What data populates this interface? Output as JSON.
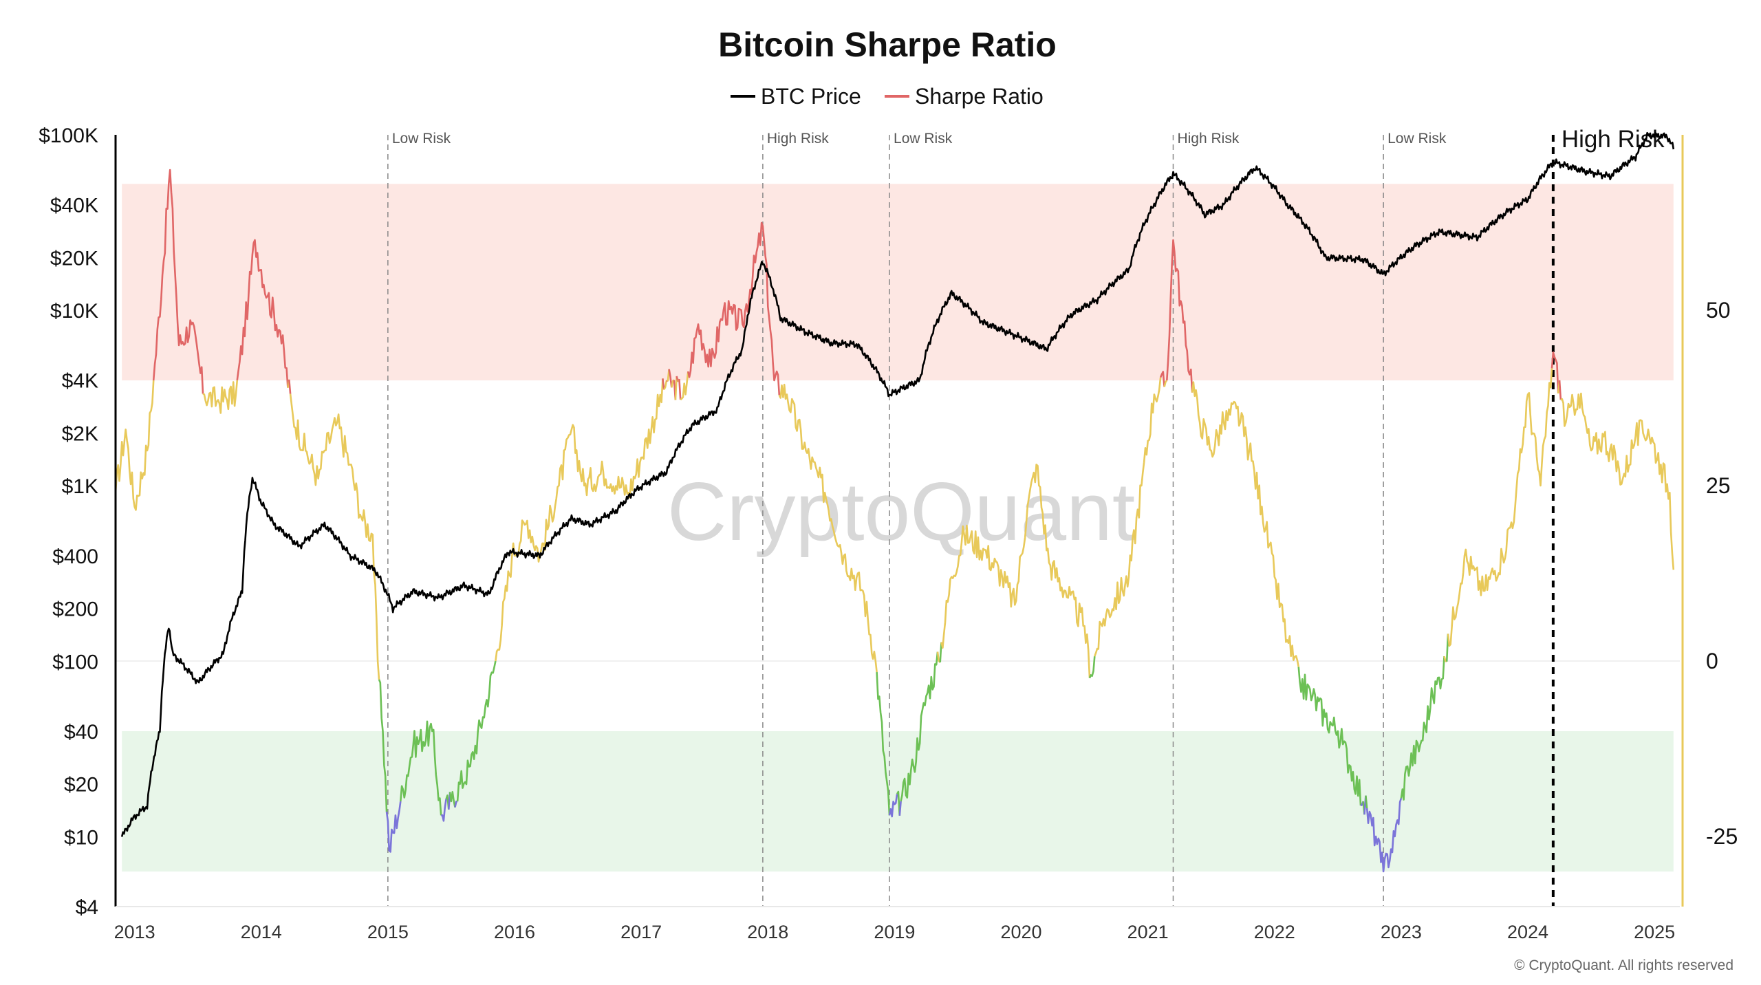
{
  "chart_data": {
    "type": "line",
    "title": "Bitcoin Sharpe Ratio",
    "watermark": "CryptoQuant",
    "copyright": "© CryptoQuant. All rights reserved",
    "legend": [
      {
        "name": "BTC Price",
        "color": "#000000"
      },
      {
        "name": "Sharpe Ratio",
        "color": "#e06666"
      }
    ],
    "x_axis": {
      "range": [
        2012.85,
        2025.2
      ],
      "ticks": [
        "2013",
        "2014",
        "2015",
        "2016",
        "2017",
        "2018",
        "2019",
        "2020",
        "2021",
        "2022",
        "2023",
        "2024",
        "2025"
      ]
    },
    "y_left": {
      "scale": "log",
      "range": [
        4,
        100000
      ],
      "ticks": [
        "$100K",
        "$40K",
        "$20K",
        "$10K",
        "$4K",
        "$2K",
        "$1K",
        "$400",
        "$200",
        "$100",
        "$40",
        "$20",
        "$10",
        "$4"
      ]
    },
    "y_right": {
      "scale": "linear",
      "range": [
        -35,
        75
      ],
      "ticks": [
        "50",
        "25",
        "0",
        "-25"
      ]
    },
    "zones": [
      {
        "name": "High Risk zone",
        "from": 40,
        "to": 68,
        "color": "#fde7e3"
      },
      {
        "name": "Low Risk zone",
        "from": -30,
        "to": -10,
        "color": "#e8f6e9"
      }
    ],
    "sharpe_colors": {
      "high": "#e06666",
      "mid": "#e8c95a",
      "low": "#6cc055",
      "extreme_low": "#7b74d9"
    },
    "markers": [
      {
        "x": 2015.0,
        "label": "Low Risk"
      },
      {
        "x": 2017.96,
        "label": "High Risk"
      },
      {
        "x": 2018.96,
        "label": "Low Risk"
      },
      {
        "x": 2021.2,
        "label": "High Risk"
      },
      {
        "x": 2022.86,
        "label": "Low Risk"
      },
      {
        "x": 2024.2,
        "label": "High Risk",
        "current": true
      }
    ],
    "series": [
      {
        "name": "BTC Price",
        "points": [
          [
            2012.9,
            10
          ],
          [
            2013.0,
            13
          ],
          [
            2013.1,
            15
          ],
          [
            2013.2,
            40
          ],
          [
            2013.27,
            160
          ],
          [
            2013.3,
            110
          ],
          [
            2013.5,
            75
          ],
          [
            2013.7,
            110
          ],
          [
            2013.85,
            250
          ],
          [
            2013.93,
            1100
          ],
          [
            2014.0,
            800
          ],
          [
            2014.1,
            600
          ],
          [
            2014.3,
            450
          ],
          [
            2014.5,
            600
          ],
          [
            2014.7,
            400
          ],
          [
            2014.9,
            330
          ],
          [
            2015.04,
            200
          ],
          [
            2015.2,
            250
          ],
          [
            2015.4,
            230
          ],
          [
            2015.6,
            270
          ],
          [
            2015.8,
            240
          ],
          [
            2015.95,
            420
          ],
          [
            2016.2,
            400
          ],
          [
            2016.45,
            650
          ],
          [
            2016.6,
            600
          ],
          [
            2016.8,
            720
          ],
          [
            2016.98,
            970
          ],
          [
            2017.2,
            1200
          ],
          [
            2017.4,
            2200
          ],
          [
            2017.6,
            2700
          ],
          [
            2017.8,
            6000
          ],
          [
            2017.96,
            19000
          ],
          [
            2018.1,
            9000
          ],
          [
            2018.3,
            7500
          ],
          [
            2018.5,
            6500
          ],
          [
            2018.7,
            6400
          ],
          [
            2018.96,
            3300
          ],
          [
            2019.2,
            4000
          ],
          [
            2019.45,
            12500
          ],
          [
            2019.7,
            8500
          ],
          [
            2019.95,
            7200
          ],
          [
            2020.2,
            6000
          ],
          [
            2020.4,
            9500
          ],
          [
            2020.6,
            11500
          ],
          [
            2020.85,
            17000
          ],
          [
            2021.05,
            40000
          ],
          [
            2021.2,
            60000
          ],
          [
            2021.45,
            35000
          ],
          [
            2021.6,
            40000
          ],
          [
            2021.85,
            65000
          ],
          [
            2022.1,
            40000
          ],
          [
            2022.4,
            20000
          ],
          [
            2022.7,
            19500
          ],
          [
            2022.86,
            16000
          ],
          [
            2023.1,
            23000
          ],
          [
            2023.3,
            28000
          ],
          [
            2023.6,
            26000
          ],
          [
            2023.85,
            37000
          ],
          [
            2024.0,
            43000
          ],
          [
            2024.2,
            70000
          ],
          [
            2024.45,
            62000
          ],
          [
            2024.65,
            58000
          ],
          [
            2024.85,
            75000
          ],
          [
            2024.95,
            100000
          ],
          [
            2025.1,
            98000
          ],
          [
            2025.15,
            84000
          ]
        ]
      },
      {
        "name": "Sharpe Ratio",
        "points": [
          [
            2012.85,
            24
          ],
          [
            2012.93,
            33
          ],
          [
            2013.0,
            22
          ],
          [
            2013.1,
            30
          ],
          [
            2013.15,
            40
          ],
          [
            2013.22,
            55
          ],
          [
            2013.28,
            70
          ],
          [
            2013.35,
            45
          ],
          [
            2013.45,
            48
          ],
          [
            2013.55,
            38
          ],
          [
            2013.65,
            37
          ],
          [
            2013.8,
            38
          ],
          [
            2013.9,
            52
          ],
          [
            2013.95,
            60
          ],
          [
            2014.05,
            52
          ],
          [
            2014.15,
            47
          ],
          [
            2014.25,
            35
          ],
          [
            2014.35,
            30
          ],
          [
            2014.45,
            26
          ],
          [
            2014.5,
            30
          ],
          [
            2014.6,
            34
          ],
          [
            2014.7,
            28
          ],
          [
            2014.8,
            20
          ],
          [
            2014.88,
            18
          ],
          [
            2014.92,
            0
          ],
          [
            2014.96,
            -10
          ],
          [
            2015.01,
            -27
          ],
          [
            2015.1,
            -20
          ],
          [
            2015.2,
            -12
          ],
          [
            2015.35,
            -10
          ],
          [
            2015.42,
            -22
          ],
          [
            2015.5,
            -20
          ],
          [
            2015.65,
            -15
          ],
          [
            2015.75,
            -8
          ],
          [
            2015.85,
            0
          ],
          [
            2015.98,
            15
          ],
          [
            2016.1,
            20
          ],
          [
            2016.2,
            15
          ],
          [
            2016.35,
            25
          ],
          [
            2016.45,
            33
          ],
          [
            2016.55,
            25
          ],
          [
            2016.7,
            27
          ],
          [
            2016.9,
            24
          ],
          [
            2017.0,
            29
          ],
          [
            2017.2,
            40
          ],
          [
            2017.35,
            38
          ],
          [
            2017.45,
            48
          ],
          [
            2017.55,
            42
          ],
          [
            2017.65,
            50
          ],
          [
            2017.8,
            48
          ],
          [
            2017.96,
            62
          ],
          [
            2018.05,
            40
          ],
          [
            2018.15,
            38
          ],
          [
            2018.3,
            30
          ],
          [
            2018.45,
            24
          ],
          [
            2018.6,
            15
          ],
          [
            2018.75,
            10
          ],
          [
            2018.85,
            0
          ],
          [
            2018.96,
            -22
          ],
          [
            2019.05,
            -20
          ],
          [
            2019.15,
            -15
          ],
          [
            2019.25,
            -5
          ],
          [
            2019.35,
            0
          ],
          [
            2019.45,
            12
          ],
          [
            2019.55,
            18
          ],
          [
            2019.7,
            16
          ],
          [
            2019.85,
            12
          ],
          [
            2019.95,
            8
          ],
          [
            2020.05,
            22
          ],
          [
            2020.12,
            28
          ],
          [
            2020.22,
            14
          ],
          [
            2020.35,
            10
          ],
          [
            2020.5,
            5
          ],
          [
            2020.55,
            -2
          ],
          [
            2020.65,
            6
          ],
          [
            2020.85,
            12
          ],
          [
            2020.95,
            25
          ],
          [
            2021.05,
            38
          ],
          [
            2021.15,
            40
          ],
          [
            2021.2,
            60
          ],
          [
            2021.3,
            45
          ],
          [
            2021.4,
            35
          ],
          [
            2021.5,
            30
          ],
          [
            2021.6,
            34
          ],
          [
            2021.7,
            36
          ],
          [
            2021.8,
            30
          ],
          [
            2021.9,
            22
          ],
          [
            2022.0,
            12
          ],
          [
            2022.1,
            3
          ],
          [
            2022.2,
            -3
          ],
          [
            2022.3,
            -5
          ],
          [
            2022.4,
            -8
          ],
          [
            2022.5,
            -10
          ],
          [
            2022.6,
            -15
          ],
          [
            2022.7,
            -20
          ],
          [
            2022.8,
            -25
          ],
          [
            2022.86,
            -30
          ],
          [
            2022.95,
            -25
          ],
          [
            2023.05,
            -15
          ],
          [
            2023.15,
            -12
          ],
          [
            2023.25,
            -5
          ],
          [
            2023.35,
            0
          ],
          [
            2023.5,
            15
          ],
          [
            2023.65,
            10
          ],
          [
            2023.8,
            15
          ],
          [
            2023.9,
            22
          ],
          [
            2024.0,
            38
          ],
          [
            2024.1,
            25
          ],
          [
            2024.2,
            44
          ],
          [
            2024.3,
            34
          ],
          [
            2024.4,
            38
          ],
          [
            2024.5,
            30
          ],
          [
            2024.6,
            32
          ],
          [
            2024.75,
            26
          ],
          [
            2024.85,
            32
          ],
          [
            2024.95,
            33
          ],
          [
            2025.05,
            28
          ],
          [
            2025.12,
            24
          ],
          [
            2025.15,
            13
          ]
        ]
      }
    ]
  }
}
